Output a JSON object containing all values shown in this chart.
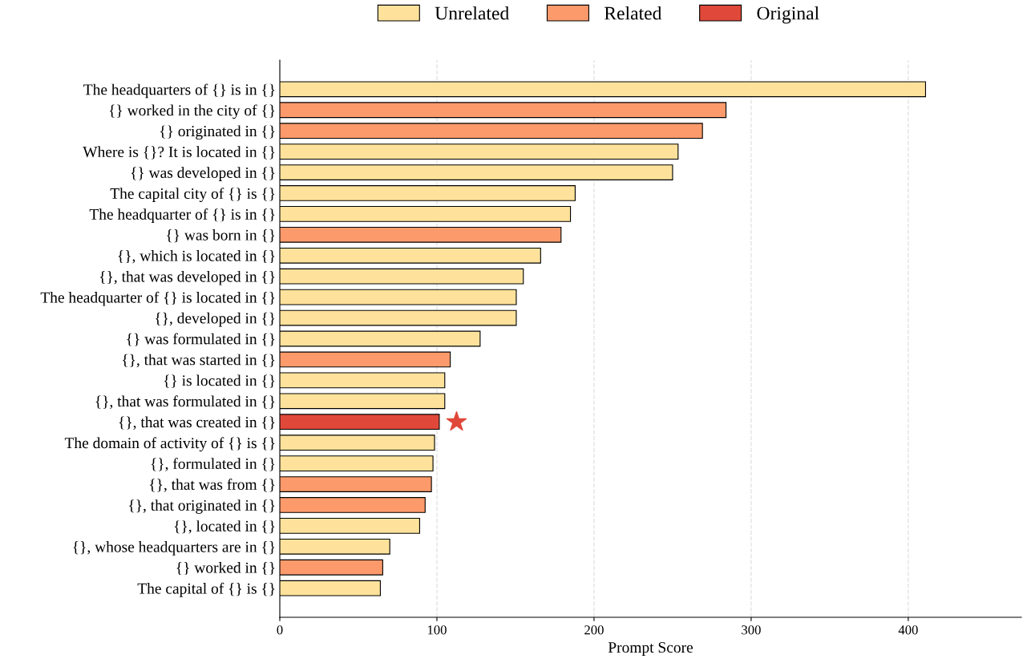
{
  "chart_data": {
    "type": "bar",
    "orientation": "horizontal",
    "xlabel": "Prompt Score",
    "categories": [
      "The headquarters of {} is in {}",
      "{} worked in the city of {}",
      "{} originated in {}",
      "Where is {}? It is located in {}",
      "{} was developed in {}",
      "The capital city of {} is {}",
      "The headquarter of {} is in {}",
      "{} was born in {}",
      "{}, which is located in {}",
      "{}, that was developed in {}",
      "The headquarter of {} is located in {}",
      "{}, developed in {}",
      "{} was formulated in {}",
      "{}, that was started in {}",
      "{} is located in {}",
      "{}, that was formulated in {}",
      "{}, that was created in {}",
      "The domain of activity of {} is {}",
      "{}, formulated in {}",
      "{}, that was from {}",
      "{}, that originated in {}",
      "{}, located in {}",
      "{}, whose headquarters are in {}",
      "{} worked in {}",
      "The capital of {} is {}"
    ],
    "series": [
      {
        "name": "Unrelated",
        "color": "#fee29b",
        "values": [
          411,
          null,
          null,
          253.5,
          250,
          188,
          185,
          null,
          166,
          155,
          150.5,
          150.5,
          127.5,
          null,
          105,
          105,
          null,
          98.5,
          97.5,
          null,
          null,
          89,
          70,
          null,
          64
        ]
      },
      {
        "name": "Related",
        "color": "#fc9a6b",
        "values": [
          null,
          284,
          269,
          null,
          null,
          null,
          null,
          179,
          null,
          null,
          null,
          null,
          null,
          108.5,
          null,
          null,
          null,
          null,
          null,
          96.5,
          92.5,
          null,
          null,
          65.5,
          null
        ]
      },
      {
        "name": "Original",
        "color": "#e0483a",
        "values": [
          null,
          null,
          null,
          null,
          null,
          null,
          null,
          null,
          null,
          null,
          null,
          null,
          null,
          null,
          null,
          null,
          101.5,
          null,
          null,
          null,
          null,
          null,
          null,
          null,
          null
        ]
      }
    ],
    "xlim": [
      0,
      472
    ],
    "xticks": [
      0,
      100,
      200,
      300,
      400
    ],
    "grid": "x",
    "legend": "top"
  }
}
